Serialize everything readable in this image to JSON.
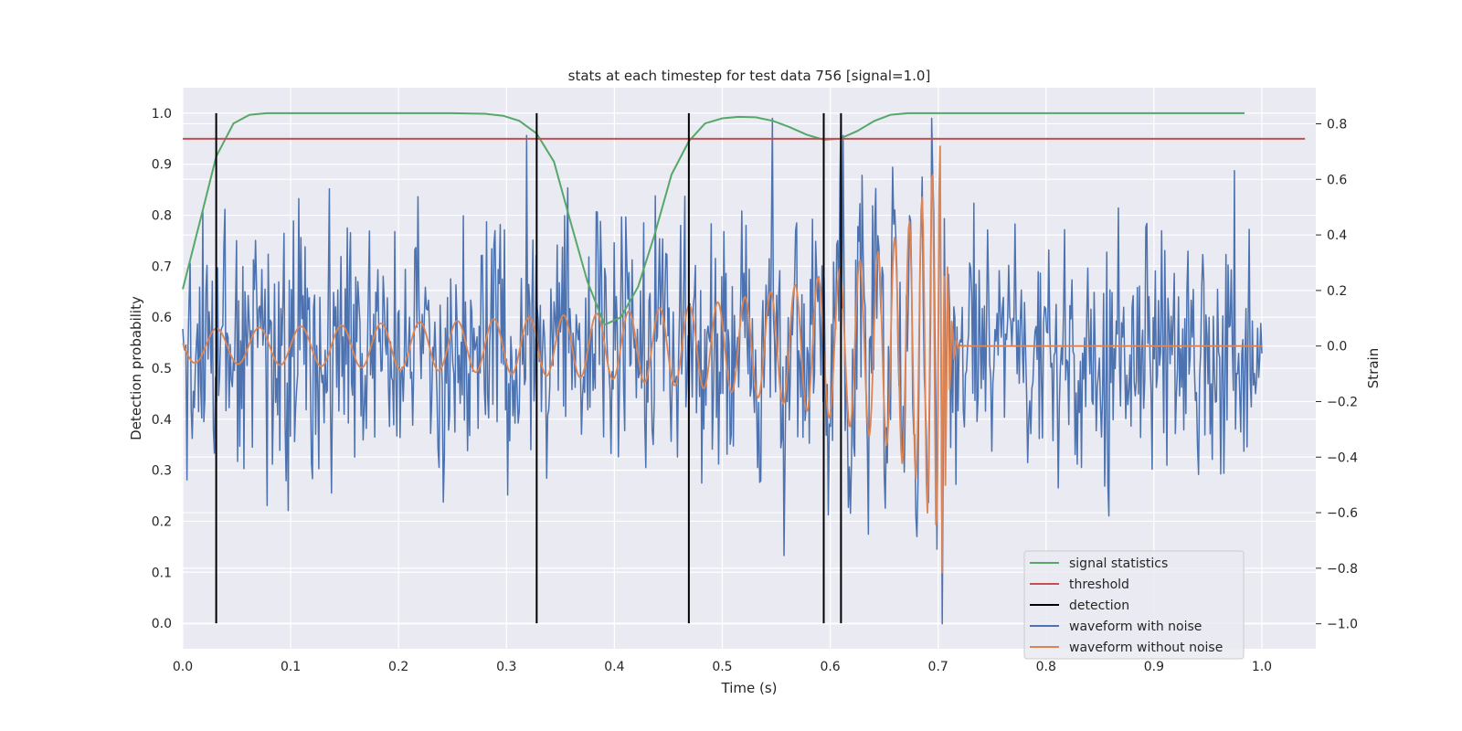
{
  "chart_data": {
    "type": "line",
    "title": "stats at each timestep for test data 756 [signal=1.0]",
    "xlabel": "Time (s)",
    "ylabel": "Detection probability",
    "y2label": "Strain",
    "xlim": [
      0.0,
      1.05
    ],
    "ylim": [
      -0.05,
      1.05
    ],
    "y2lim": [
      -1.09,
      0.93
    ],
    "xticks": [
      "0.0",
      "0.1",
      "0.2",
      "0.3",
      "0.4",
      "0.5",
      "0.6",
      "0.7",
      "0.8",
      "0.9",
      "1.0"
    ],
    "yticks": [
      "0.0",
      "0.1",
      "0.2",
      "0.3",
      "0.4",
      "0.5",
      "0.6",
      "0.7",
      "0.8",
      "0.9",
      "1.0"
    ],
    "y2ticks": [
      "−1.0",
      "−0.8",
      "−0.6",
      "−0.4",
      "−0.2",
      "0.0",
      "0.2",
      "0.4",
      "0.6",
      "0.8"
    ],
    "grid": true,
    "legend_position": "lower-right",
    "colors": {
      "signal_statistics": "#55a868",
      "threshold": "#c44e52",
      "detection": "#000000",
      "waveform_with_noise": "#4c72b0",
      "waveform_without_noise": "#dd8452",
      "plot_background": "#eaeaf2",
      "grid": "#ffffff"
    },
    "legend": [
      "signal statistics",
      "threshold",
      "detection",
      "waveform with noise",
      "waveform without noise"
    ],
    "series": [
      {
        "name": "signal statistics",
        "axis": "left",
        "x": [
          0.0,
          0.015,
          0.031,
          0.047,
          0.062,
          0.078,
          0.1,
          0.15,
          0.2,
          0.25,
          0.28,
          0.297,
          0.312,
          0.328,
          0.344,
          0.359,
          0.375,
          0.391,
          0.406,
          0.422,
          0.437,
          0.453,
          0.469,
          0.484,
          0.5,
          0.515,
          0.531,
          0.547,
          0.562,
          0.578,
          0.594,
          0.609,
          0.625,
          0.641,
          0.656,
          0.672,
          0.7,
          0.75,
          0.8,
          0.85,
          0.9,
          0.95,
          0.984
        ],
        "y": [
          0.655,
          0.78,
          0.915,
          0.98,
          0.997,
          1.0,
          1.0,
          1.0,
          1.0,
          1.0,
          0.999,
          0.995,
          0.985,
          0.96,
          0.905,
          0.79,
          0.67,
          0.585,
          0.6,
          0.66,
          0.76,
          0.88,
          0.945,
          0.98,
          0.99,
          0.993,
          0.992,
          0.985,
          0.973,
          0.958,
          0.948,
          0.95,
          0.965,
          0.985,
          0.997,
          1.0,
          1.0,
          1.0,
          1.0,
          1.0,
          1.0,
          1.0,
          1.0
        ]
      },
      {
        "name": "threshold",
        "axis": "left",
        "x": [
          0.0,
          1.04
        ],
        "y": [
          0.95,
          0.95
        ]
      },
      {
        "name": "detection",
        "axis": "left",
        "x_positions": [
          0.031,
          0.328,
          0.469,
          0.594,
          0.61
        ],
        "y_range": [
          0.0,
          1.0
        ]
      },
      {
        "name": "waveform with noise",
        "axis": "right",
        "n_points": 1024,
        "x_range": [
          0.0,
          1.0
        ],
        "y_range": [
          -1.0,
          0.82
        ],
        "style": "dense noisy strain trace with peaks near 0.8 around 0.70 s and a minimum near -1.0 at 0.705 s"
      },
      {
        "name": "waveform without noise",
        "axis": "right",
        "x": [
          0.0,
          0.05,
          0.1,
          0.15,
          0.2,
          0.25,
          0.3,
          0.35,
          0.4,
          0.45,
          0.5,
          0.55,
          0.6,
          0.65,
          0.68,
          0.7,
          0.705,
          0.71,
          0.72,
          0.75,
          1.0
        ],
        "envelope": [
          0.06,
          0.065,
          0.07,
          0.075,
          0.085,
          0.09,
          0.1,
          0.11,
          0.12,
          0.14,
          0.16,
          0.2,
          0.26,
          0.35,
          0.48,
          0.72,
          0.85,
          0.5,
          0.05,
          0.0,
          0.0
        ],
        "style": "chirp: oscillation with frequency and amplitude growing until merger at ~0.705 s, then ringdown to 0.0"
      }
    ]
  }
}
